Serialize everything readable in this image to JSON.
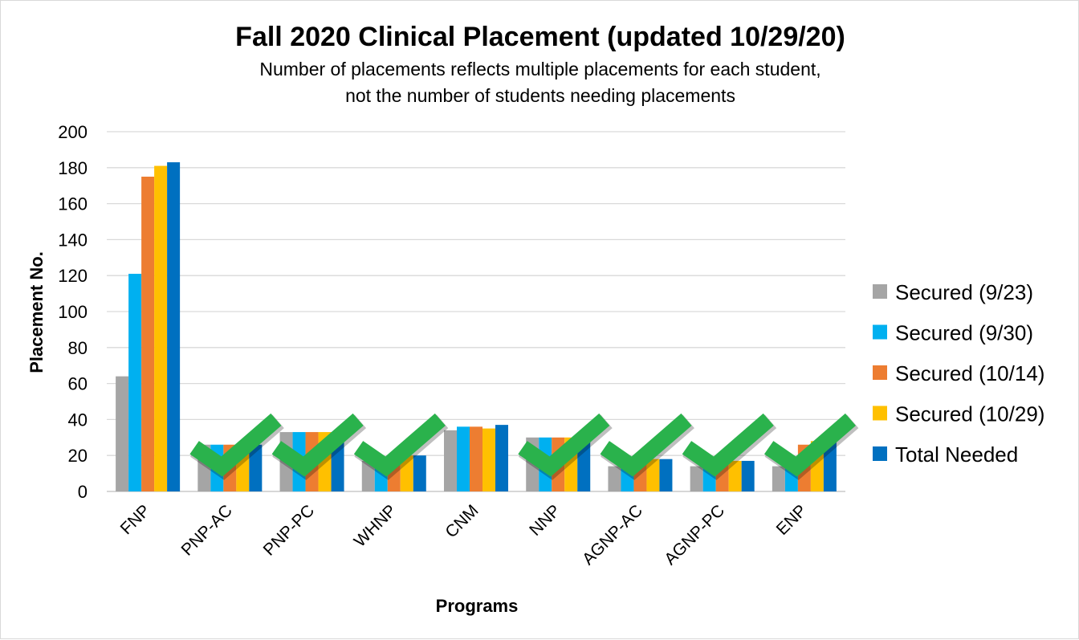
{
  "chart_data": {
    "type": "bar",
    "title": "Fall 2020 Clinical Placement (updated 10/29/20)",
    "subtitle_lines": [
      "Number of placements reflects multiple placements for each student,",
      "not the number of students needing placements"
    ],
    "xlabel": "Programs",
    "ylabel": "Placement No.",
    "ylim": [
      0,
      200
    ],
    "yticks": [
      "0",
      "20",
      "40",
      "60",
      "80",
      "100",
      "120",
      "140",
      "160",
      "180",
      "200"
    ],
    "grid": true,
    "legend_position": "right",
    "categories": [
      "FNP",
      "PNP-AC",
      "PNP-PC",
      "WHNP",
      "CNM",
      "NNP",
      "AGNP-AC",
      "AGNP-PC",
      "ENP"
    ],
    "series": [
      {
        "name": "Secured (9/23)",
        "color": "#a5a5a5",
        "values": [
          64,
          26,
          33,
          17,
          34,
          30,
          14,
          14,
          14
        ]
      },
      {
        "name": "Secured (9/30)",
        "color": "#00b0f0",
        "values": [
          121,
          26,
          33,
          17,
          36,
          30,
          18,
          14,
          17
        ]
      },
      {
        "name": "Secured (10/14)",
        "color": "#ed7d31",
        "values": [
          175,
          26,
          33,
          20,
          36,
          30,
          18,
          17,
          26
        ]
      },
      {
        "name": "Secured (10/29)",
        "color": "#ffc000",
        "values": [
          181,
          26,
          33,
          20,
          35,
          30,
          18,
          17,
          28
        ]
      },
      {
        "name": "Total Needed",
        "color": "#0070c0",
        "values": [
          183,
          26,
          33,
          20,
          37,
          30,
          18,
          17,
          28
        ]
      }
    ],
    "checkmarks_on": [
      "PNP-AC",
      "PNP-PC",
      "WHNP",
      "NNP",
      "AGNP-AC",
      "AGNP-PC",
      "ENP"
    ],
    "checkmark_color": "#2ab24c"
  }
}
